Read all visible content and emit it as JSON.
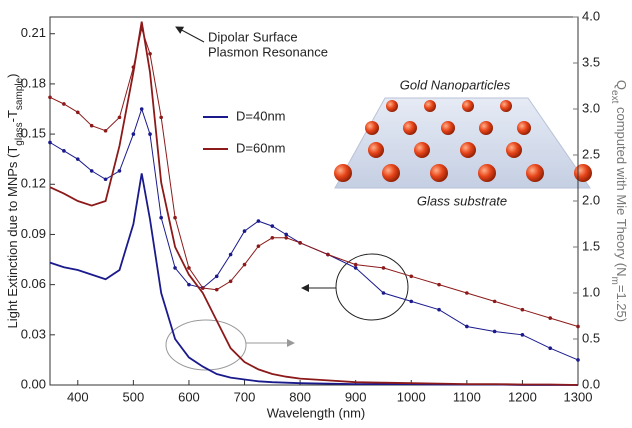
{
  "chart_data": {
    "type": "line",
    "x_label": "Wavelength (nm)",
    "y_label_parts": [
      "Light Extinction due to MNPs (T",
      "glass",
      "-T",
      "sample",
      ")"
    ],
    "y2_label_parts": [
      "Q",
      "ext",
      " computed with Mie Theory (N",
      "m",
      "=1.25)"
    ],
    "annotations": [
      "Dipolar Surface",
      "Plasmon Resonance",
      "Gold Nanoparticles",
      "Glass substrate"
    ],
    "x": [
      350,
      375,
      400,
      425,
      450,
      475,
      500,
      515,
      530,
      550,
      575,
      600,
      625,
      650,
      675,
      700,
      725,
      750,
      775,
      800,
      850,
      900,
      950,
      1000,
      1050,
      1100,
      1150,
      1200,
      1250,
      1300
    ],
    "xlim": [
      350,
      1300
    ],
    "xticks": [
      400,
      500,
      600,
      700,
      800,
      900,
      1000,
      1100,
      1200,
      1300
    ],
    "ylim": [
      0,
      0.22
    ],
    "yticks": [
      {
        "value": 0,
        "label": "0.00"
      },
      {
        "value": 0.03,
        "label": "0.03"
      },
      {
        "value": 0.06,
        "label": "0.06"
      },
      {
        "value": 0.09,
        "label": "0.09"
      },
      {
        "value": 0.12,
        "label": "0.12"
      },
      {
        "value": 0.15,
        "label": "0.15"
      },
      {
        "value": 0.18,
        "label": "0.18"
      },
      {
        "value": 0.21,
        "label": "0.21"
      }
    ],
    "y2lim": [
      0,
      4.0
    ],
    "y2ticks": [
      {
        "value": 0,
        "label": "0.0"
      },
      0.5,
      {
        "value": 1,
        "label": "1.0"
      },
      1.5,
      {
        "value": 2,
        "label": "2.0"
      },
      2.5,
      {
        "value": 3,
        "label": "3.0"
      },
      3.5,
      {
        "value": 4,
        "label": "4.0"
      }
    ],
    "series": [
      {
        "name": "D=40nm",
        "color": "#1a1a8c",
        "markers": true,
        "values": [
          0.145,
          0.14,
          0.135,
          0.128,
          0.123,
          0.128,
          0.15,
          0.165,
          0.15,
          0.1,
          0.07,
          0.06,
          0.058,
          0.065,
          0.078,
          0.092,
          0.098,
          0.095,
          0.09,
          0.085,
          0.078,
          0.07,
          0.055,
          0.05,
          0.045,
          0.035,
          0.032,
          0.03,
          0.022,
          0.015
        ]
      },
      {
        "name": "D=60nm",
        "color": "#8c1a1a",
        "markers": true,
        "values": [
          0.172,
          0.168,
          0.163,
          0.155,
          0.152,
          0.16,
          0.19,
          0.213,
          0.198,
          0.16,
          0.1,
          0.07,
          0.058,
          0.057,
          0.062,
          0.072,
          0.083,
          0.088,
          0.088,
          0.085,
          0.078,
          0.072,
          0.07,
          0.065,
          0.06,
          0.055,
          0.05,
          0.045,
          0.04,
          0.035
        ]
      },
      {
        "color": "#1a1a8c",
        "axis": "y2",
        "markers": false,
        "values": [
          1.33,
          1.28,
          1.25,
          1.2,
          1.15,
          1.25,
          1.75,
          2.3,
          1.8,
          1.0,
          0.5,
          0.3,
          0.2,
          0.12,
          0.08,
          0.06,
          0.04,
          0.03,
          0.025,
          0.02,
          0.015,
          0.01,
          0.01,
          0.01,
          0.005,
          0.005,
          0.005,
          0,
          0,
          0
        ]
      },
      {
        "color": "#8c1a1a",
        "axis": "y2",
        "markers": false,
        "values": [
          2.15,
          2.08,
          2.0,
          1.95,
          2.0,
          2.6,
          3.4,
          3.95,
          3.4,
          2.2,
          1.5,
          1.2,
          1.0,
          0.7,
          0.4,
          0.25,
          0.17,
          0.12,
          0.09,
          0.07,
          0.05,
          0.03,
          0.025,
          0.02,
          0.015,
          0.01,
          0.01,
          0.005,
          0.005,
          0
        ]
      }
    ]
  }
}
